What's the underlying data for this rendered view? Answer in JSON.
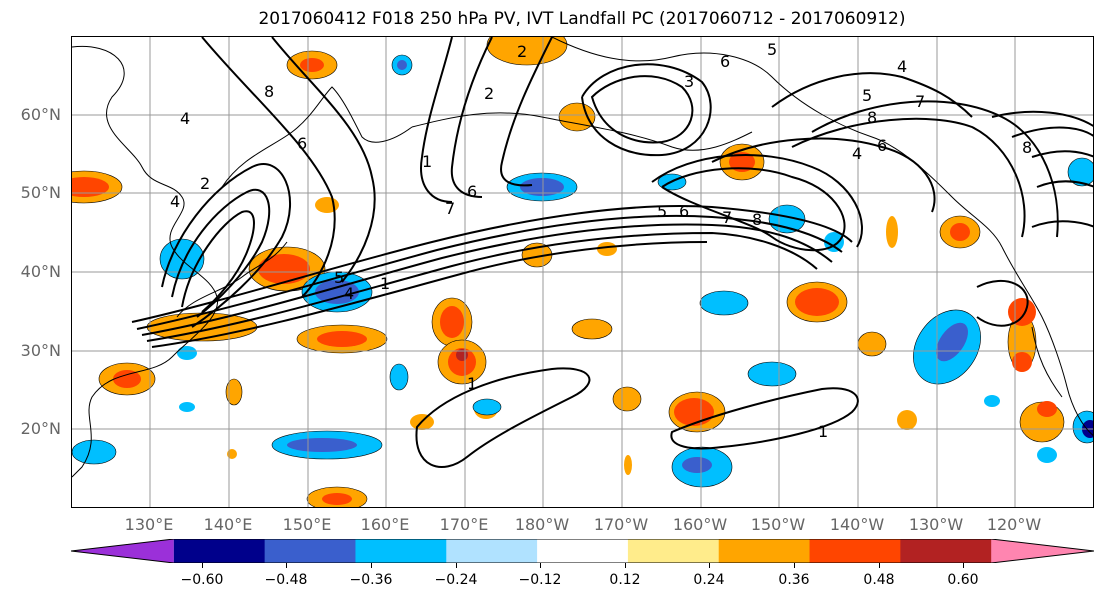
{
  "title": "2017060412 F018 250 hPa PV, IVT Landfall PC (2017060712 - 2017060912)",
  "lat_labels": [
    "60°N",
    "50°N",
    "40°N",
    "30°N",
    "20°N"
  ],
  "lon_labels": [
    "130°E",
    "140°E",
    "150°E",
    "160°E",
    "170°E",
    "180°W",
    "170°W",
    "160°W",
    "150°W",
    "140°W",
    "130°W",
    "120°W"
  ],
  "contour_labels": [
    "8",
    "6",
    "4",
    "2",
    "4",
    "6",
    "7",
    "5",
    "4",
    "1",
    "5",
    "6",
    "7",
    "8",
    "2",
    "3",
    "1",
    "6",
    "5",
    "4",
    "5",
    "7",
    "8",
    "6",
    "4",
    "1",
    "1",
    "8",
    "2"
  ],
  "colorbar": {
    "ticks": [
      "−0.60",
      "−0.48",
      "−0.36",
      "−0.24",
      "−0.12",
      "0.12",
      "0.24",
      "0.36",
      "0.48",
      "0.60"
    ],
    "colors": [
      "#9b30d9",
      "#00008b",
      "#3a5fcd",
      "#00bfff",
      "#b0e2ff",
      "#ffffff",
      "#ffec8b",
      "#ffa500",
      "#ff4500",
      "#b22222",
      "#ff85b0"
    ]
  }
}
